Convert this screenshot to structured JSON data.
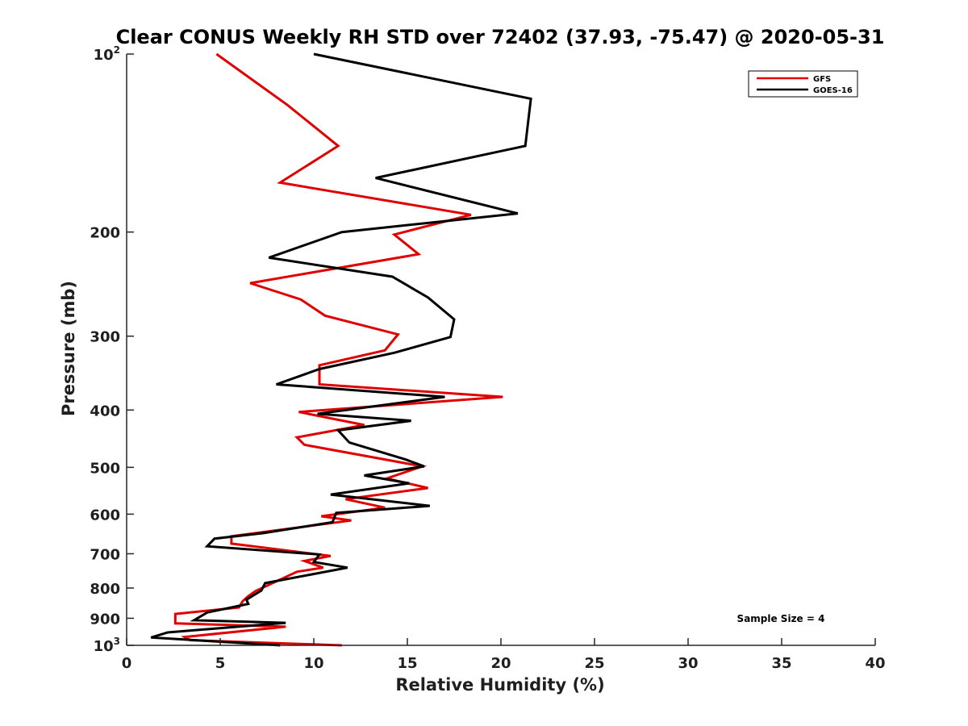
{
  "chart_data": {
    "type": "line",
    "title": "Clear CONUS Weekly RH STD over 72402 (37.93, -75.47) @ 2020-05-31",
    "xlabel": "Relative Humidity (%)",
    "ylabel": "Pressure (mb)",
    "xlim": [
      0,
      40
    ],
    "ylim": [
      100,
      1000
    ],
    "yscale": "log",
    "y_reversed": true,
    "grid": false,
    "x_ticks": [
      0,
      5,
      10,
      15,
      20,
      25,
      30,
      35,
      40
    ],
    "x_tick_labels": [
      "0",
      "5",
      "10",
      "15",
      "20",
      "25",
      "30",
      "35",
      "40"
    ],
    "y_ticks": [
      100,
      200,
      300,
      400,
      500,
      600,
      700,
      800,
      900,
      1000
    ],
    "y_tick_labels": [
      {
        "base": "10",
        "exp": "2"
      },
      {
        "base": "200"
      },
      {
        "base": "300"
      },
      {
        "base": "400"
      },
      {
        "base": "500"
      },
      {
        "base": "600"
      },
      {
        "base": "700"
      },
      {
        "base": "800"
      },
      {
        "base": "900"
      },
      {
        "base": "10",
        "exp": "3"
      }
    ],
    "legend_position": "top-right",
    "annotation": "Sample Size = 4",
    "series": [
      {
        "name": "GFS",
        "color": "#e00000",
        "points": [
          {
            "x": 4.8,
            "y": 100
          },
          {
            "x": 8.6,
            "y": 122
          },
          {
            "x": 11.3,
            "y": 143
          },
          {
            "x": 8.2,
            "y": 165
          },
          {
            "x": 18.4,
            "y": 187
          },
          {
            "x": 14.3,
            "y": 202
          },
          {
            "x": 15.6,
            "y": 218
          },
          {
            "x": 6.6,
            "y": 244
          },
          {
            "x": 9.3,
            "y": 260
          },
          {
            "x": 10.6,
            "y": 277
          },
          {
            "x": 14.5,
            "y": 298
          },
          {
            "x": 13.8,
            "y": 317
          },
          {
            "x": 10.3,
            "y": 336
          },
          {
            "x": 10.3,
            "y": 362
          },
          {
            "x": 20.1,
            "y": 380
          },
          {
            "x": 9.2,
            "y": 403
          },
          {
            "x": 12.7,
            "y": 424
          },
          {
            "x": 9.1,
            "y": 445
          },
          {
            "x": 9.5,
            "y": 458
          },
          {
            "x": 15.8,
            "y": 498
          },
          {
            "x": 13.9,
            "y": 522
          },
          {
            "x": 16.1,
            "y": 542
          },
          {
            "x": 11.7,
            "y": 566
          },
          {
            "x": 13.8,
            "y": 585
          },
          {
            "x": 10.4,
            "y": 605
          },
          {
            "x": 12.0,
            "y": 615
          },
          {
            "x": 5.6,
            "y": 654
          },
          {
            "x": 5.6,
            "y": 673
          },
          {
            "x": 10.9,
            "y": 706
          },
          {
            "x": 9.5,
            "y": 720
          },
          {
            "x": 10.5,
            "y": 739
          },
          {
            "x": 9.1,
            "y": 751
          },
          {
            "x": 6.9,
            "y": 809
          },
          {
            "x": 6.5,
            "y": 826
          },
          {
            "x": 6.2,
            "y": 842
          },
          {
            "x": 6.0,
            "y": 863
          },
          {
            "x": 2.6,
            "y": 885
          },
          {
            "x": 2.6,
            "y": 918
          },
          {
            "x": 8.5,
            "y": 930
          },
          {
            "x": 3.1,
            "y": 968
          },
          {
            "x": 3.4,
            "y": 980
          },
          {
            "x": 11.5,
            "y": 1000
          }
        ]
      },
      {
        "name": "GOES-16",
        "color": "#000000",
        "points": [
          {
            "x": 10.0,
            "y": 100
          },
          {
            "x": 21.6,
            "y": 119
          },
          {
            "x": 21.3,
            "y": 143
          },
          {
            "x": 13.3,
            "y": 162
          },
          {
            "x": 20.9,
            "y": 186
          },
          {
            "x": 11.5,
            "y": 200
          },
          {
            "x": 7.6,
            "y": 221
          },
          {
            "x": 14.2,
            "y": 238
          },
          {
            "x": 16.1,
            "y": 258
          },
          {
            "x": 17.5,
            "y": 281
          },
          {
            "x": 17.3,
            "y": 301
          },
          {
            "x": 14.3,
            "y": 320
          },
          {
            "x": 10.3,
            "y": 341
          },
          {
            "x": 8.0,
            "y": 362
          },
          {
            "x": 17.0,
            "y": 380
          },
          {
            "x": 10.2,
            "y": 406
          },
          {
            "x": 15.2,
            "y": 417
          },
          {
            "x": 11.3,
            "y": 433
          },
          {
            "x": 11.9,
            "y": 454
          },
          {
            "x": 14.9,
            "y": 485
          },
          {
            "x": 15.9,
            "y": 498
          },
          {
            "x": 12.7,
            "y": 516
          },
          {
            "x": 15.1,
            "y": 532
          },
          {
            "x": 10.9,
            "y": 556
          },
          {
            "x": 16.2,
            "y": 581
          },
          {
            "x": 11.2,
            "y": 597
          },
          {
            "x": 11.0,
            "y": 619
          },
          {
            "x": 7.3,
            "y": 646
          },
          {
            "x": 4.7,
            "y": 660
          },
          {
            "x": 4.3,
            "y": 680
          },
          {
            "x": 10.3,
            "y": 702
          },
          {
            "x": 10.0,
            "y": 723
          },
          {
            "x": 11.8,
            "y": 739
          },
          {
            "x": 7.4,
            "y": 785
          },
          {
            "x": 7.2,
            "y": 808
          },
          {
            "x": 6.4,
            "y": 837
          },
          {
            "x": 6.5,
            "y": 851
          },
          {
            "x": 4.3,
            "y": 880
          },
          {
            "x": 3.6,
            "y": 907
          },
          {
            "x": 8.5,
            "y": 916
          },
          {
            "x": 2.2,
            "y": 951
          },
          {
            "x": 1.3,
            "y": 970
          },
          {
            "x": 8.2,
            "y": 1000
          }
        ]
      }
    ]
  }
}
